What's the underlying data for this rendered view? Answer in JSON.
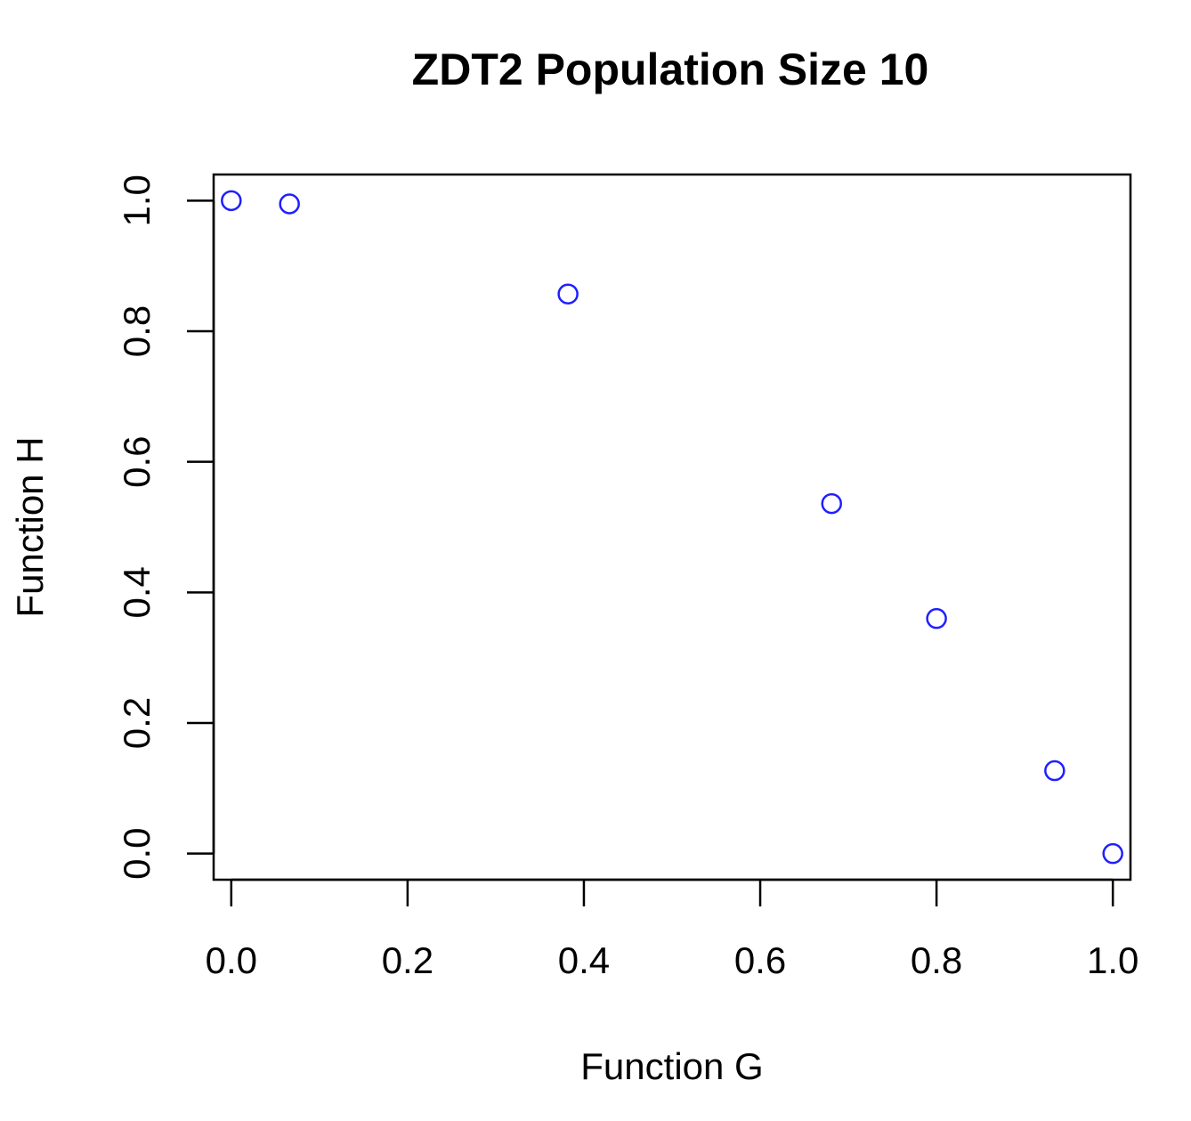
{
  "chart_data": {
    "type": "scatter",
    "title": "ZDT2 Population Size 10",
    "xlabel": "Function G",
    "ylabel": "Function H",
    "xlim": [
      -0.02,
      1.02
    ],
    "ylim": [
      -0.04,
      1.04
    ],
    "xticks": [
      "0.0",
      "0.2",
      "0.4",
      "0.6",
      "0.8",
      "1.0"
    ],
    "yticks": [
      "0.0",
      "0.2",
      "0.4",
      "0.6",
      "0.8",
      "1.0"
    ],
    "grid": false,
    "legend": "none",
    "series": [
      {
        "color": "#1f1fff",
        "marker": "open-circle",
        "points": [
          {
            "x": 0.0,
            "y": 1.0
          },
          {
            "x": 0.066,
            "y": 0.995
          },
          {
            "x": 0.382,
            "y": 0.857
          },
          {
            "x": 0.681,
            "y": 0.536
          },
          {
            "x": 0.8,
            "y": 0.36
          },
          {
            "x": 0.934,
            "y": 0.127
          },
          {
            "x": 1.0,
            "y": 0.0
          }
        ]
      }
    ]
  }
}
